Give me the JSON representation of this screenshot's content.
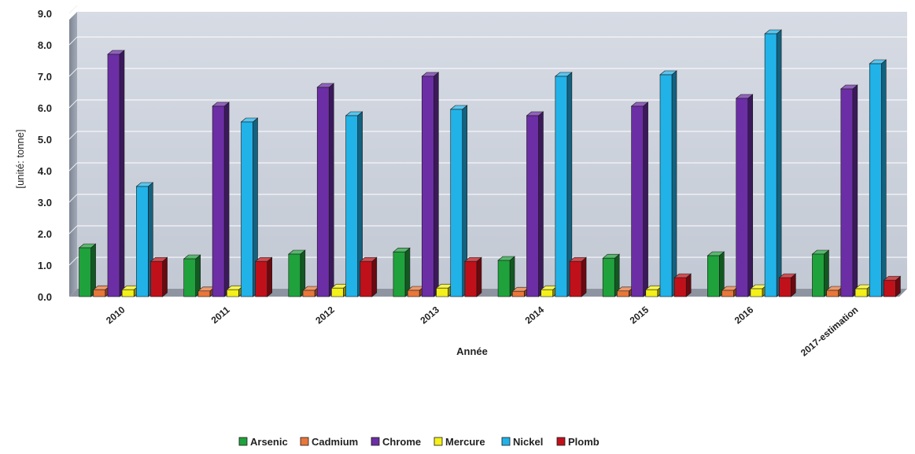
{
  "chart_data": {
    "type": "bar",
    "title": "",
    "xlabel": "Année",
    "ylabel": "[unité: tonne]",
    "ylim": [
      0,
      9
    ],
    "yticks": [
      "0.0",
      "1.0",
      "2.0",
      "3.0",
      "4.0",
      "5.0",
      "6.0",
      "7.0",
      "8.0",
      "9.0"
    ],
    "categories": [
      "2010",
      "2011",
      "2012",
      "2013",
      "2014",
      "2015",
      "2016",
      "2017-estimation"
    ],
    "legend_position": "bottom",
    "grid": true,
    "series": [
      {
        "name": "Arsenic",
        "color": "#1fa23c",
        "values": [
          1.55,
          1.2,
          1.35,
          1.42,
          1.15,
          1.22,
          1.3,
          1.35
        ]
      },
      {
        "name": "Cadmium",
        "color": "#e8773a",
        "values": [
          0.22,
          0.18,
          0.2,
          0.2,
          0.17,
          0.18,
          0.2,
          0.2
        ]
      },
      {
        "name": "Chrome",
        "color": "#6c2ea5",
        "values": [
          7.7,
          6.05,
          6.65,
          7.0,
          5.75,
          6.05,
          6.3,
          6.6
        ]
      },
      {
        "name": "Mercure",
        "color": "#f3f01a",
        "values": [
          0.22,
          0.22,
          0.27,
          0.27,
          0.22,
          0.22,
          0.25,
          0.25
        ]
      },
      {
        "name": "Nickel",
        "color": "#21b2e8",
        "values": [
          3.5,
          5.55,
          5.75,
          5.95,
          7.0,
          7.05,
          8.35,
          7.4
        ]
      },
      {
        "name": "Plomb",
        "color": "#c0111b",
        "values": [
          1.12,
          1.12,
          1.12,
          1.12,
          1.12,
          0.6,
          0.6,
          0.52
        ]
      }
    ]
  }
}
